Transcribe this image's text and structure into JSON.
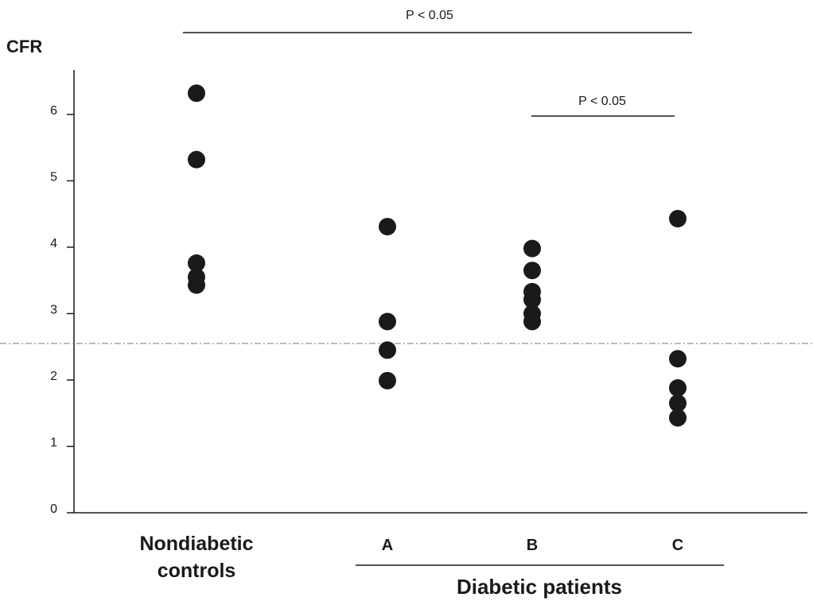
{
  "chart_data": {
    "type": "strip",
    "y_label": "CFR",
    "categories": [
      "Nondiabetic controls",
      "A",
      "B",
      "C"
    ],
    "group_label": "Diabetic patients",
    "values": [
      [
        6.32,
        5.32,
        3.76,
        3.55,
        3.43
      ],
      [
        4.31,
        2.88,
        2.45,
        1.99
      ],
      [
        3.98,
        3.65,
        3.33,
        3.21,
        3.0,
        2.88
      ],
      [
        4.43,
        2.32,
        1.88,
        1.65,
        1.43
      ]
    ],
    "color": "#1a1a1a",
    "reference_line": 2.55,
    "annotations": [
      "P < 0.05",
      "P < 0.05"
    ],
    "ylim": [
      0,
      6.67
    ],
    "yticks": [
      0,
      1,
      2,
      3,
      4,
      5,
      6
    ]
  }
}
